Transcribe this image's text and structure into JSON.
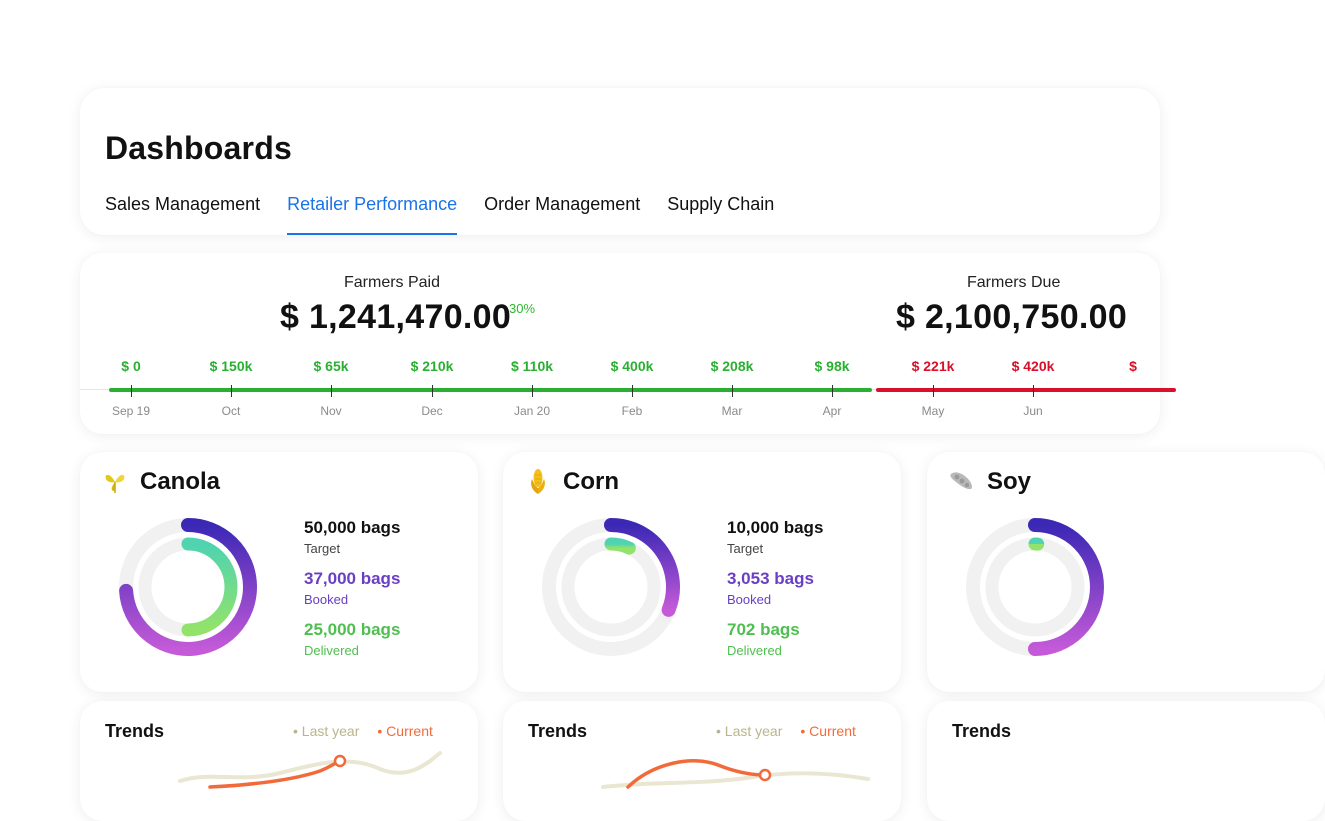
{
  "header": {
    "title": "Dashboards",
    "tabs": [
      {
        "label": "Sales Management",
        "active": false
      },
      {
        "label": "Retailer Performance",
        "active": true
      },
      {
        "label": "Order Management",
        "active": false
      },
      {
        "label": "Supply Chain",
        "active": false
      }
    ]
  },
  "timeline": {
    "paid": {
      "label": "Farmers Paid",
      "value": "$ 1,241,470.00",
      "change": "30%"
    },
    "due": {
      "label": "Farmers Due",
      "value": "$ 2,100,750.00"
    },
    "points": [
      {
        "amount": "$ 0",
        "month": "Sep 19",
        "status": "paid"
      },
      {
        "amount": "$ 150k",
        "month": "Oct",
        "status": "paid"
      },
      {
        "amount": "$ 65k",
        "month": "Nov",
        "status": "paid"
      },
      {
        "amount": "$ 210k",
        "month": "Dec",
        "status": "paid"
      },
      {
        "amount": "$ 110k",
        "month": "Jan 20",
        "status": "paid"
      },
      {
        "amount": "$ 400k",
        "month": "Feb",
        "status": "paid"
      },
      {
        "amount": "$ 208k",
        "month": "Mar",
        "status": "paid"
      },
      {
        "amount": "$ 98k",
        "month": "Apr",
        "status": "paid"
      },
      {
        "amount": "$ 221k",
        "month": "May",
        "status": "due"
      },
      {
        "amount": "$ 420k",
        "month": "Jun",
        "status": "due"
      },
      {
        "amount": "$",
        "month": "",
        "status": "due"
      }
    ],
    "colors": {
      "paid": "#2ab031",
      "due": "#d8102b"
    }
  },
  "crops": [
    {
      "name": "Canola",
      "icon": "canola-leaf-icon",
      "target": "50,000 bags",
      "target_label": "Target",
      "booked": "37,000 bags",
      "booked_label": "Booked",
      "delivered": "25,000 bags",
      "delivered_label": "Delivered",
      "booked_ratio": 0.74,
      "delivered_ratio": 0.5
    },
    {
      "name": "Corn",
      "icon": "corn-icon",
      "target": "10,000 bags",
      "target_label": "Target",
      "booked": "3,053 bags",
      "booked_label": "Booked",
      "delivered": "702 bags",
      "delivered_label": "Delivered",
      "booked_ratio": 0.31,
      "delivered_ratio": 0.07
    },
    {
      "name": "Soy",
      "icon": "soy-pod-icon",
      "booked_ratio": 0.5,
      "delivered_ratio": 0.01
    }
  ],
  "trends": [
    {
      "title": "Trends",
      "legend_last": "• Last year",
      "legend_current": "• Current"
    },
    {
      "title": "Trends",
      "legend_last": "• Last year",
      "legend_current": "• Current"
    },
    {
      "title": "Trends"
    }
  ]
}
